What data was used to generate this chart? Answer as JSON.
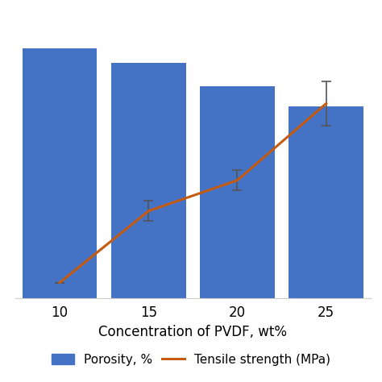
{
  "categories": [
    10,
    15,
    20,
    25
  ],
  "porosity": [
    87,
    82,
    74,
    67
  ],
  "tensile_strength": [
    1.5,
    8.5,
    11.5,
    19.0
  ],
  "tensile_errors": [
    0.0,
    1.0,
    1.0,
    2.2
  ],
  "bar_color": "#4472C4",
  "line_color": "#C55A11",
  "bar_width": 4.2,
  "xlabel": "Concentration of PVDF, wt%",
  "legend_bar_label": "Porosity, %",
  "legend_line_label": "Tensile strength (MPa)",
  "ylim_bar": [
    0,
    100
  ],
  "ylim_line": [
    0,
    28
  ],
  "background_color": "#ffffff",
  "grid_color": "#d9d9d9",
  "x_tick_labels": [
    "10",
    "15",
    "20",
    "25"
  ],
  "xlim": [
    7.5,
    27.5
  ]
}
